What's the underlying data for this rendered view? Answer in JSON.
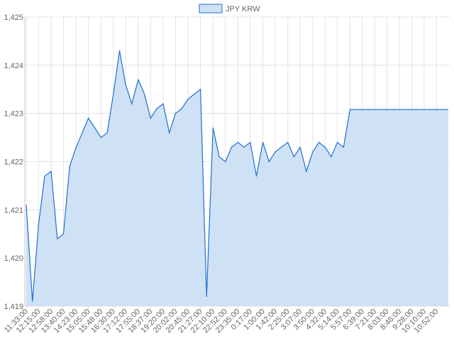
{
  "chart_data": {
    "type": "area",
    "legend": {
      "position": "top",
      "entries": [
        "JPY KRW"
      ]
    },
    "series": [
      {
        "name": "JPY KRW",
        "color": "#1f6fd1",
        "fill": "#cfe1f4",
        "x": [
          "11:33:00",
          "11:54:00",
          "12:15:00",
          "12:36:00",
          "12:58:00",
          "13:19:00",
          "13:40:00",
          "14:01:00",
          "14:23:00",
          "14:44:00",
          "15:05:00",
          "15:27:00",
          "15:48:00",
          "16:09:00",
          "16:30:00",
          "16:51:00",
          "17:12:00",
          "17:33:00",
          "17:55:00",
          "18:16:00",
          "18:37:00",
          "18:58:00",
          "19:20:00",
          "19:41:00",
          "20:02:00",
          "20:23:00",
          "20:45:00",
          "21:06:00",
          "21:27:00",
          "21:48:00",
          "22:10:00",
          "22:31:00",
          "22:52:00",
          "23:13:00",
          "23:35:00",
          "23:56:00",
          "0:17:00",
          "0:38:00",
          "1:00:00",
          "1:21:00",
          "1:42:00",
          "2:03:00",
          "2:25:00",
          "2:46:00",
          "3:07:00",
          "3:28:00",
          "3:50:00",
          "4:11:00",
          "4:32:00",
          "4:53:00",
          "5:14:00",
          "5:35:00",
          "5:57:00",
          "6:18:00",
          "6:39:00",
          "7:00:00",
          "7:21:00",
          "7:42:00",
          "8:03:00",
          "8:24:00",
          "8:46:00",
          "9:07:00",
          "9:28:00",
          "9:49:00",
          "10:10:00",
          "10:31:00",
          "10:52:00",
          "11:13:00"
        ],
        "y": [
          1421.1,
          1419.1,
          1420.7,
          1421.7,
          1421.8,
          1420.4,
          1420.5,
          1421.9,
          1422.3,
          1422.6,
          1422.9,
          1422.7,
          1422.5,
          1422.6,
          1423.4,
          1424.3,
          1423.6,
          1423.2,
          1423.7,
          1423.4,
          1422.9,
          1423.1,
          1423.2,
          1422.6,
          1423.0,
          1423.1,
          1423.3,
          1423.4,
          1423.5,
          1419.2,
          1422.7,
          1422.1,
          1422.0,
          1422.3,
          1422.4,
          1422.3,
          1422.4,
          1421.7,
          1422.4,
          1422.0,
          1422.2,
          1422.3,
          1422.4,
          1422.1,
          1422.3,
          1421.8,
          1422.2,
          1422.4,
          1422.3,
          1422.1,
          1422.4,
          1422.3,
          1423.08,
          1423.08,
          1423.08,
          1423.08,
          1423.08,
          1423.08,
          1423.08,
          1423.08,
          1423.08,
          1423.08,
          1423.08,
          1423.08,
          1423.08,
          1423.08,
          1423.08,
          1423.08
        ]
      }
    ],
    "y_axis": {
      "min": 1419,
      "max": 1425,
      "step": 1,
      "tick_labels": [
        "1,419",
        "1,420",
        "1,421",
        "1,422",
        "1,423",
        "1,424",
        "1,425"
      ]
    },
    "x_axis": {
      "tick_labels": [
        "11:33:00",
        "12:15:00",
        "12:58:00",
        "13:40:00",
        "14:23:00",
        "15:05:00",
        "15:48:00",
        "16:30:00",
        "17:12:00",
        "17:55:00",
        "18:37:00",
        "19:20:00",
        "20:02:00",
        "20:45:00",
        "21:27:00",
        "22:10:00",
        "22:52:00",
        "23:35:00",
        "0:17:00",
        "1:00:00",
        "1:42:00",
        "2:25:00",
        "3:07:00",
        "3:50:00",
        "4:32:00",
        "5:14:00",
        "5:57:00",
        "6:39:00",
        "7:21:00",
        "8:03:00",
        "8:46:00",
        "9:28:00",
        "10:10:00",
        "10:52:00"
      ]
    },
    "grid": true
  }
}
